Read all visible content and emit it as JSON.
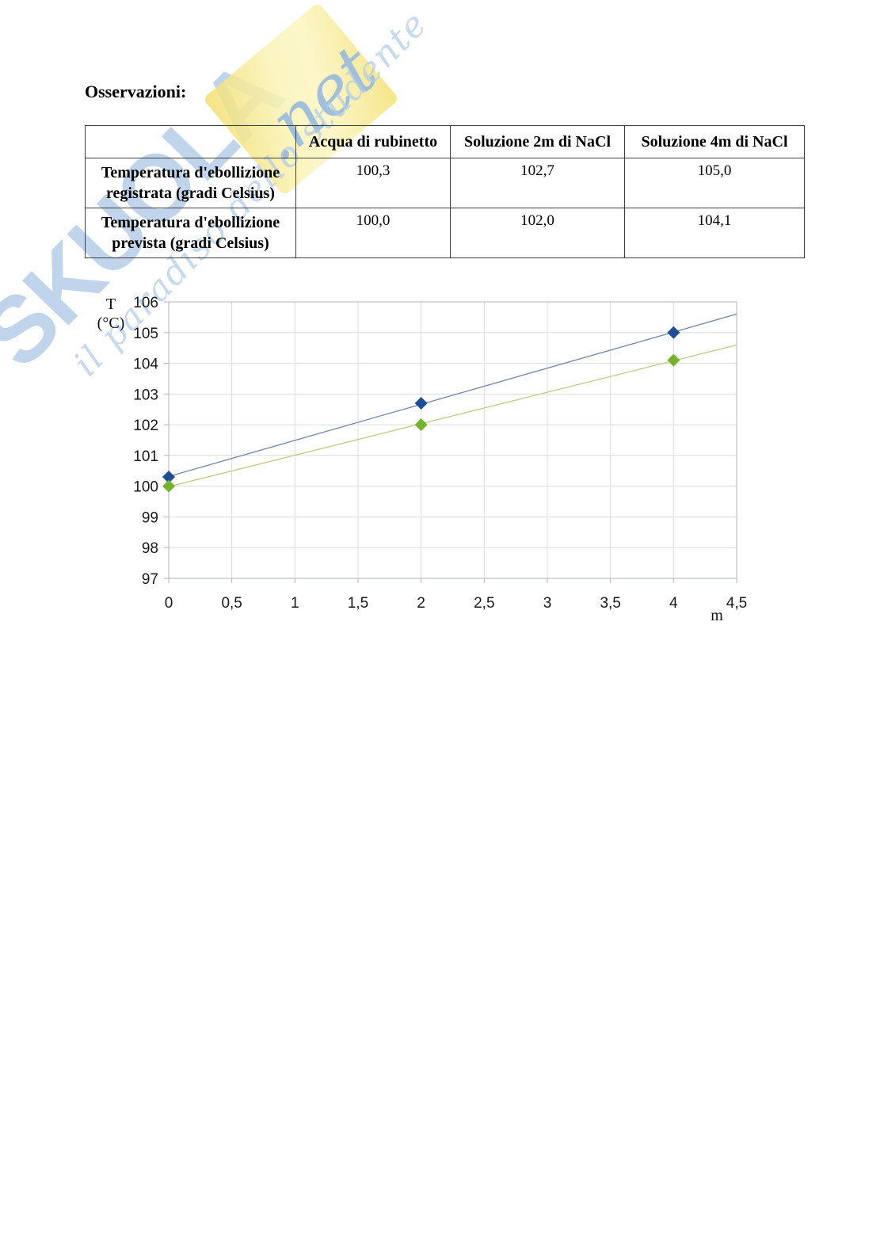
{
  "heading": "Osservazioni:",
  "watermark": {
    "wordmark": "SKUOLA",
    "net": ".net",
    "tagline": "il paradiso dello studente"
  },
  "table": {
    "headers": [
      "",
      "Acqua di rubinetto",
      "Soluzione 2m di NaCl",
      "Soluzione 4m di NaCl"
    ],
    "rows": [
      {
        "label": "Temperatura d'ebollizione registrata (gradi Celsius)",
        "values": [
          "100,3",
          "102,7",
          "105,0"
        ]
      },
      {
        "label": "Temperatura d'ebollizione prevista (gradi Celsius)",
        "values": [
          "100,0",
          "102,0",
          "104,1"
        ]
      }
    ]
  },
  "chart_data": {
    "type": "scatter",
    "x": [
      0,
      2,
      4
    ],
    "series": [
      {
        "name": "Temperatura d'ebollizione registrata (gradi Celsius)",
        "values": [
          100.3,
          102.7,
          105.0
        ],
        "marker_color": "#1e4e9a",
        "trend_color": "#7186aa"
      },
      {
        "name": "Temperatura d'ebollizione prevista (gradi Celsius)",
        "values": [
          100.0,
          102.0,
          104.1
        ],
        "marker_color": "#74b42c",
        "trend_color": "#c2ca86"
      }
    ],
    "xlabel": "m",
    "ylabel_lines": [
      "T",
      "(°C)"
    ],
    "xlim": [
      0,
      4.5
    ],
    "ylim": [
      97,
      106
    ],
    "x_tick_step": 0.5,
    "y_tick_step": 1,
    "x_ticklabels": [
      "0",
      "0,5",
      "1",
      "1,5",
      "2",
      "2,5",
      "3",
      "3,5",
      "4",
      "4,5"
    ],
    "y_ticklabels": [
      "97",
      "98",
      "99",
      "100",
      "101",
      "102",
      "103",
      "104",
      "105",
      "106"
    ],
    "grid": true,
    "legend": false,
    "marker": "diamond",
    "trendlines": true,
    "grid_color": "#dcdcdc",
    "axis_color": "#b2b6ba"
  }
}
